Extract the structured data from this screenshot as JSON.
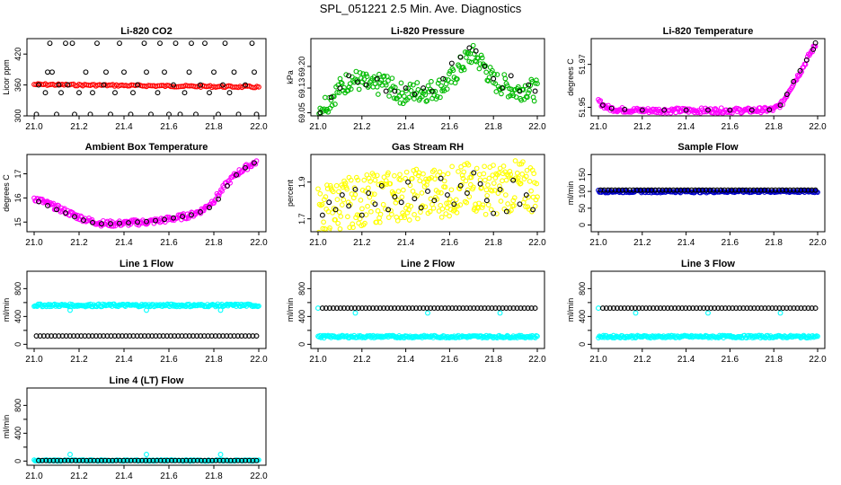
{
  "page_title": "SPL_051221  2.5 Min. Ave. Diagnostics",
  "chart_data": [
    {
      "id": "co2",
      "type": "scatter",
      "title": "Li-820 CO2",
      "ylabel": "Licor ppm",
      "xlim": [
        21.0,
        22.0
      ],
      "xticks": [
        21.0,
        21.2,
        21.4,
        21.6,
        21.8,
        22.0
      ],
      "xtick_labels": [
        "21.0",
        "21.2",
        "21.4",
        "21.6",
        "21.8",
        "22.0"
      ],
      "ylim": [
        300,
        450
      ],
      "yticks": [
        300,
        360,
        420
      ],
      "ytick_labels": [
        "300",
        "360",
        "420"
      ],
      "series": [
        {
          "color": "#ff0000",
          "marker": "dense",
          "x": [
            21.0,
            22.0
          ],
          "y": [
            361,
            356
          ]
        },
        {
          "color": "#000000",
          "marker": "open",
          "x": [
            21.01,
            21.02,
            21.05,
            21.06,
            21.07,
            21.08,
            21.1,
            21.11,
            21.12,
            21.14,
            21.15,
            21.17,
            21.18,
            21.2,
            21.23,
            21.25,
            21.26,
            21.28,
            21.31,
            21.32,
            21.34,
            21.36,
            21.38,
            21.4,
            21.43,
            21.44,
            21.46,
            21.49,
            21.5,
            21.52,
            21.55,
            21.56,
            21.58,
            21.6,
            21.62,
            21.63,
            21.65,
            21.67,
            21.69,
            21.7,
            21.72,
            21.74,
            21.76,
            21.78,
            21.8,
            21.82,
            21.84,
            21.85,
            21.87,
            21.89,
            21.91,
            21.94,
            21.97,
            21.98,
            21.99
          ],
          "y": [
            303,
            360,
            345,
            385,
            441,
            385,
            303,
            360,
            345,
            441,
            360,
            441,
            303,
            345,
            385,
            303,
            345,
            441,
            360,
            385,
            303,
            345,
            441,
            385,
            303,
            345,
            360,
            441,
            385,
            303,
            345,
            441,
            385,
            303,
            360,
            441,
            303,
            345,
            385,
            441,
            303,
            360,
            441,
            345,
            385,
            303,
            360,
            441,
            345,
            385,
            303,
            360,
            441,
            385,
            303
          ]
        }
      ]
    },
    {
      "id": "pressure",
      "type": "scatter",
      "title": "Li-820 Pressure",
      "ylabel": "kPa",
      "xlim": [
        21.0,
        22.0
      ],
      "xticks": [
        21.0,
        21.2,
        21.4,
        21.6,
        21.8,
        22.0
      ],
      "xtick_labels": [
        "21.0",
        "21.2",
        "21.4",
        "21.6",
        "21.8",
        "22.0"
      ],
      "ylim": [
        69.04,
        69.29
      ],
      "yticks": [
        69.05,
        69.13,
        69.2
      ],
      "ytick_labels": [
        "69.05",
        "69.13",
        "69.20"
      ],
      "series": [
        {
          "color": "#00bb00",
          "marker": "band",
          "band": 0.035,
          "x": [
            21.0,
            21.05,
            21.1,
            21.15,
            21.2,
            21.25,
            21.3,
            21.35,
            21.4,
            21.45,
            21.5,
            21.55,
            21.6,
            21.65,
            21.7,
            21.75,
            21.8,
            21.85,
            21.9,
            21.95,
            22.0
          ],
          "y": [
            69.06,
            69.09,
            69.13,
            69.16,
            69.15,
            69.13,
            69.15,
            69.12,
            69.11,
            69.12,
            69.12,
            69.13,
            69.15,
            69.2,
            69.24,
            69.21,
            69.15,
            69.14,
            69.12,
            69.13,
            69.12
          ]
        },
        {
          "color": "#000000",
          "marker": "open",
          "x": [
            21.01,
            21.06,
            21.1,
            21.14,
            21.18,
            21.22,
            21.27,
            21.31,
            21.35,
            21.4,
            21.44,
            21.48,
            21.52,
            21.57,
            21.61,
            21.65,
            21.69,
            21.72,
            21.76,
            21.8,
            21.84,
            21.88,
            21.92,
            21.96,
            21.99
          ],
          "y": [
            69.05,
            69.1,
            69.13,
            69.17,
            69.15,
            69.14,
            69.16,
            69.12,
            69.12,
            69.13,
            69.11,
            69.13,
            69.12,
            69.16,
            69.21,
            69.23,
            69.26,
            69.25,
            69.2,
            69.16,
            69.13,
            69.17,
            69.12,
            69.14,
            69.12
          ]
        }
      ]
    },
    {
      "id": "temp",
      "type": "scatter",
      "title": "Li-820 Temperature",
      "ylabel": "degrees C",
      "xlim": [
        21.0,
        22.0
      ],
      "xticks": [
        21.0,
        21.2,
        21.4,
        21.6,
        21.8,
        22.0
      ],
      "xtick_labels": [
        "21.0",
        "21.2",
        "21.4",
        "21.6",
        "21.8",
        "22.0"
      ],
      "ylim": [
        51.946,
        51.982
      ],
      "yticks": [
        51.95,
        51.97
      ],
      "ytick_labels": [
        "51.95",
        "51.97"
      ],
      "series": [
        {
          "color": "#ff00ff",
          "marker": "band",
          "band": 0.0012,
          "x": [
            21.0,
            21.02,
            21.05,
            21.1,
            21.2,
            21.3,
            21.4,
            21.5,
            21.6,
            21.7,
            21.8,
            21.84,
            21.87,
            21.9,
            21.93,
            21.96,
            21.99
          ],
          "y": [
            51.953,
            51.951,
            51.9495,
            51.9488,
            51.9485,
            51.9485,
            51.9485,
            51.9485,
            51.9485,
            51.9485,
            51.949,
            51.952,
            51.958,
            51.963,
            51.968,
            51.974,
            51.979
          ]
        },
        {
          "color": "#000000",
          "marker": "open",
          "x": [
            21.02,
            21.06,
            21.12,
            21.2,
            21.3,
            21.4,
            21.5,
            21.6,
            21.7,
            21.78,
            21.83,
            21.86,
            21.89,
            21.92,
            21.95,
            21.98,
            21.99
          ],
          "y": [
            51.951,
            51.9495,
            51.949,
            51.9487,
            51.9487,
            51.9487,
            51.9487,
            51.9487,
            51.9487,
            51.9488,
            51.951,
            51.956,
            51.962,
            51.967,
            51.972,
            51.977,
            51.98
          ]
        }
      ]
    },
    {
      "id": "ambient",
      "type": "scatter",
      "title": "Ambient Box Temperature",
      "ylabel": "degrees C",
      "xlim": [
        21.0,
        22.0
      ],
      "xticks": [
        21.0,
        21.2,
        21.4,
        21.6,
        21.8,
        22.0
      ],
      "xtick_labels": [
        "21.0",
        "21.2",
        "21.4",
        "21.6",
        "21.8",
        "22.0"
      ],
      "ylim": [
        14.6,
        17.8
      ],
      "yticks": [
        15,
        16,
        17
      ],
      "ytick_labels": [
        "15",
        "16",
        "17"
      ],
      "series": [
        {
          "color": "#ff00ff",
          "marker": "band",
          "band": 0.12,
          "x": [
            21.0,
            21.05,
            21.1,
            21.15,
            21.2,
            21.25,
            21.3,
            21.35,
            21.4,
            21.45,
            21.5,
            21.55,
            21.6,
            21.65,
            21.7,
            21.75,
            21.8,
            21.85,
            21.9,
            21.95,
            21.99
          ],
          "y": [
            16.0,
            15.8,
            15.6,
            15.4,
            15.2,
            15.05,
            14.95,
            14.93,
            14.95,
            14.98,
            15.0,
            15.05,
            15.12,
            15.2,
            15.3,
            15.5,
            15.9,
            16.5,
            17.0,
            17.3,
            17.5
          ]
        },
        {
          "color": "#000000",
          "marker": "open",
          "x": [
            21.02,
            21.06,
            21.1,
            21.14,
            21.18,
            21.22,
            21.26,
            21.3,
            21.34,
            21.38,
            21.42,
            21.46,
            21.5,
            21.54,
            21.58,
            21.62,
            21.66,
            21.7,
            21.74,
            21.78,
            21.82,
            21.86,
            21.9,
            21.94,
            21.98
          ],
          "y": [
            15.85,
            15.68,
            15.52,
            15.38,
            15.22,
            15.08,
            14.98,
            14.93,
            14.93,
            14.95,
            14.97,
            15.0,
            15.02,
            15.06,
            15.11,
            15.17,
            15.23,
            15.3,
            15.42,
            15.6,
            15.95,
            16.5,
            16.95,
            17.25,
            17.45
          ]
        }
      ]
    },
    {
      "id": "rh",
      "type": "scatter",
      "title": "Gas Stream RH",
      "ylabel": "percent",
      "xlim": [
        21.0,
        22.0
      ],
      "xticks": [
        21.0,
        21.2,
        21.4,
        21.6,
        21.8,
        22.0
      ],
      "xtick_labels": [
        "21.0",
        "21.2",
        "21.4",
        "21.6",
        "21.8",
        "22.0"
      ],
      "ylim": [
        1.63,
        2.05
      ],
      "yticks": [
        1.7,
        1.9
      ],
      "ytick_labels": [
        "1.7",
        "1.9"
      ],
      "series": [
        {
          "color": "#ffff00",
          "marker": "scatterband",
          "band": 0.14,
          "x": [
            21.0,
            21.1,
            21.2,
            21.3,
            21.4,
            21.5,
            21.6,
            21.7,
            21.8,
            21.9,
            22.0
          ],
          "y": [
            1.74,
            1.78,
            1.8,
            1.82,
            1.83,
            1.84,
            1.85,
            1.87,
            1.86,
            1.88,
            1.87
          ]
        },
        {
          "color": "#000000",
          "marker": "open",
          "x": [
            21.02,
            21.05,
            21.08,
            21.11,
            21.14,
            21.17,
            21.2,
            21.23,
            21.26,
            21.29,
            21.32,
            21.35,
            21.38,
            21.41,
            21.44,
            21.47,
            21.5,
            21.53,
            21.56,
            21.59,
            21.62,
            21.65,
            21.68,
            21.71,
            21.74,
            21.77,
            21.8,
            21.83,
            21.86,
            21.89,
            21.92,
            21.95,
            21.98
          ],
          "y": [
            1.72,
            1.79,
            1.75,
            1.83,
            1.77,
            1.86,
            1.72,
            1.84,
            1.78,
            1.88,
            1.75,
            1.82,
            1.79,
            1.9,
            1.81,
            1.76,
            1.85,
            1.8,
            1.92,
            1.83,
            1.78,
            1.88,
            1.84,
            1.95,
            1.89,
            1.8,
            1.73,
            1.86,
            1.74,
            1.91,
            1.78,
            1.83,
            1.75
          ]
        }
      ]
    },
    {
      "id": "sample",
      "type": "scatter",
      "title": "Sample Flow",
      "ylabel": "ml/min",
      "xlim": [
        21.0,
        22.0
      ],
      "xticks": [
        21.0,
        21.2,
        21.4,
        21.6,
        21.8,
        22.0
      ],
      "xtick_labels": [
        "21.0",
        "21.2",
        "21.4",
        "21.6",
        "21.8",
        "22.0"
      ],
      "ylim": [
        -20,
        210
      ],
      "yticks": [
        0,
        50,
        100,
        150
      ],
      "ytick_labels": [
        "0",
        "50",
        "100",
        "150"
      ],
      "series": [
        {
          "color": "#0000cc",
          "marker": "band",
          "band": 4,
          "x": [
            21.0,
            22.0
          ],
          "y": [
            100,
            100
          ]
        },
        {
          "color": "#000000",
          "marker": "opendense",
          "count": 60,
          "x": [
            21.01,
            21.99
          ],
          "y": [
            104,
            104
          ]
        }
      ]
    },
    {
      "id": "line1",
      "type": "scatter",
      "title": "Line 1 Flow",
      "ylabel": "ml/min",
      "xlim": [
        21.0,
        22.0
      ],
      "xticks": [
        21.0,
        21.2,
        21.4,
        21.6,
        21.8,
        22.0
      ],
      "xtick_labels": [
        "21.0",
        "21.2",
        "21.4",
        "21.6",
        "21.8",
        "22.0"
      ],
      "ylim": [
        -60,
        1050
      ],
      "yticks": [
        0,
        200,
        400,
        600,
        800
      ],
      "ytick_labels": [
        "0",
        "400",
        "800"
      ],
      "ytick_label_values": [
        0,
        400,
        800
      ],
      "series": [
        {
          "color": "#00ffff",
          "marker": "band",
          "band": 20,
          "x": [
            21.0,
            22.0
          ],
          "y": [
            560,
            560
          ]
        },
        {
          "color": "#00ffff",
          "marker": "open",
          "x": [
            21.16,
            21.5,
            21.83
          ],
          "y": [
            490,
            490,
            490
          ]
        },
        {
          "color": "#000000",
          "marker": "opendense",
          "count": 60,
          "x": [
            21.01,
            21.99
          ],
          "y": [
            120,
            120
          ]
        }
      ]
    },
    {
      "id": "line2",
      "type": "scatter",
      "title": "Line 2 Flow",
      "ylabel": "ml/min",
      "xlim": [
        21.0,
        22.0
      ],
      "xticks": [
        21.0,
        21.2,
        21.4,
        21.6,
        21.8,
        22.0
      ],
      "xtick_labels": [
        "21.0",
        "21.2",
        "21.4",
        "21.6",
        "21.8",
        "22.0"
      ],
      "ylim": [
        -60,
        1050
      ],
      "yticks": [
        0,
        200,
        400,
        600,
        800
      ],
      "ytick_labels": [
        "0",
        "400",
        "800"
      ],
      "ytick_label_values": [
        0,
        400,
        800
      ],
      "series": [
        {
          "color": "#00ffff",
          "marker": "band",
          "band": 18,
          "x": [
            21.0,
            22.0
          ],
          "y": [
            110,
            110
          ]
        },
        {
          "color": "#00ffff",
          "marker": "open",
          "x": [
            21.0,
            21.17,
            21.5,
            21.83
          ],
          "y": [
            520,
            450,
            450,
            450
          ]
        },
        {
          "color": "#000000",
          "marker": "opendense",
          "count": 60,
          "x": [
            21.02,
            21.99
          ],
          "y": [
            520,
            520
          ]
        }
      ]
    },
    {
      "id": "line3",
      "type": "scatter",
      "title": "Line 3 Flow",
      "ylabel": "ml/min",
      "xlim": [
        21.0,
        22.0
      ],
      "xticks": [
        21.0,
        21.2,
        21.4,
        21.6,
        21.8,
        22.0
      ],
      "xtick_labels": [
        "21.0",
        "21.2",
        "21.4",
        "21.6",
        "21.8",
        "22.0"
      ],
      "ylim": [
        -60,
        1050
      ],
      "yticks": [
        0,
        200,
        400,
        600,
        800
      ],
      "ytick_labels": [
        "0",
        "400",
        "800"
      ],
      "ytick_label_values": [
        0,
        400,
        800
      ],
      "series": [
        {
          "color": "#00ffff",
          "marker": "band",
          "band": 18,
          "x": [
            21.0,
            22.0
          ],
          "y": [
            110,
            110
          ]
        },
        {
          "color": "#00ffff",
          "marker": "open",
          "x": [
            21.0,
            21.17,
            21.5,
            21.83
          ],
          "y": [
            520,
            450,
            450,
            450
          ]
        },
        {
          "color": "#000000",
          "marker": "opendense",
          "count": 60,
          "x": [
            21.02,
            21.99
          ],
          "y": [
            520,
            520
          ]
        }
      ]
    },
    {
      "id": "line4",
      "type": "scatter",
      "title": "Line 4 (LT) Flow",
      "ylabel": "ml/min",
      "xlim": [
        21.0,
        22.0
      ],
      "xticks": [
        21.0,
        21.2,
        21.4,
        21.6,
        21.8,
        22.0
      ],
      "xtick_labels": [
        "21.0",
        "21.2",
        "21.4",
        "21.6",
        "21.8",
        "22.0"
      ],
      "ylim": [
        -60,
        1050
      ],
      "yticks": [
        0,
        200,
        400,
        600,
        800
      ],
      "ytick_labels": [
        "0",
        "400",
        "800"
      ],
      "ytick_label_values": [
        0,
        400,
        800
      ],
      "series": [
        {
          "color": "#00ffff",
          "marker": "band",
          "band": 10,
          "x": [
            21.0,
            22.0
          ],
          "y": [
            8,
            8
          ]
        },
        {
          "color": "#00ffff",
          "marker": "open",
          "x": [
            21.16,
            21.5,
            21.83
          ],
          "y": [
            95,
            95,
            95
          ]
        },
        {
          "color": "#000000",
          "marker": "opendense",
          "count": 60,
          "x": [
            21.02,
            21.99
          ],
          "y": [
            8,
            8
          ]
        }
      ]
    }
  ]
}
